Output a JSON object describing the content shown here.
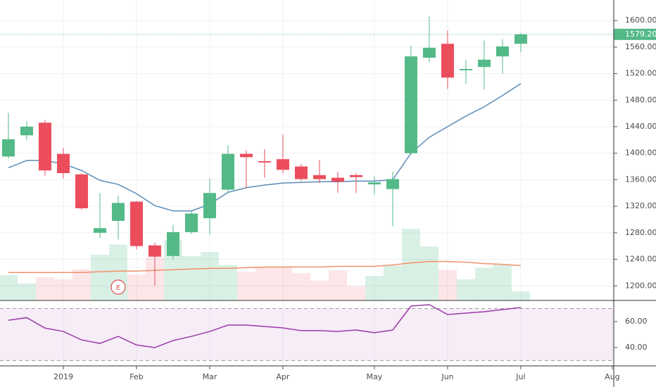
{
  "chart_data": {
    "type": "candlestick",
    "ylim": [
      1178,
      1631
    ],
    "yticks": [
      {
        "value": 1200,
        "label": "1200.00"
      },
      {
        "value": 1240,
        "label": "1240.00"
      },
      {
        "value": 1280,
        "label": "1280.00"
      },
      {
        "value": 1320,
        "label": "1320.00"
      },
      {
        "value": 1360,
        "label": "1360.00"
      },
      {
        "value": 1400,
        "label": "1400.00"
      },
      {
        "value": 1440,
        "label": "1440.00"
      },
      {
        "value": 1480,
        "label": "1480.00"
      },
      {
        "value": 1520,
        "label": "1520.00"
      },
      {
        "value": 1560,
        "label": "1560.00"
      },
      {
        "value": 1600,
        "label": "1600.00"
      }
    ],
    "xlim": [
      -0.46,
      33.08
    ],
    "xticks": [
      {
        "value": 3,
        "label": "2019"
      },
      {
        "value": 7,
        "label": "Feb"
      },
      {
        "value": 11,
        "label": "Mar"
      },
      {
        "value": 15,
        "label": "Apr"
      },
      {
        "value": 20,
        "label": "May"
      },
      {
        "value": 24,
        "label": "Jun"
      },
      {
        "value": 28,
        "label": "Jul"
      },
      {
        "value": 33,
        "label": "Aug"
      }
    ],
    "last_price": {
      "value": 1579.2,
      "label": "1579.20",
      "color": "#53b987"
    },
    "up_color": "#53b987",
    "down_color": "#eb4d5c",
    "open": [
      1395,
      1427,
      1446,
      1399,
      1368,
      1280,
      1298,
      1327,
      1261,
      1245,
      1281,
      1302,
      1345,
      1399,
      1388,
      1391,
      1380,
      1367,
      1363,
      1367,
      1353,
      1346,
      1400,
      1544,
      1565,
      1525,
      1530,
      1546,
      1565
    ],
    "high": [
      1461,
      1448,
      1450,
      1408,
      1370,
      1340,
      1336,
      1328,
      1265,
      1292,
      1312,
      1362,
      1412,
      1404,
      1406,
      1428,
      1384,
      1390,
      1372,
      1370,
      1365,
      1372,
      1562,
      1606,
      1585,
      1540,
      1570,
      1572,
      1581
    ],
    "low": [
      1392,
      1420,
      1366,
      1362,
      1315,
      1272,
      1270,
      1255,
      1200,
      1240,
      1278,
      1278,
      1340,
      1347,
      1363,
      1370,
      1358,
      1355,
      1340,
      1340,
      1338,
      1290,
      1398,
      1537,
      1497,
      1505,
      1496,
      1520,
      1552
    ],
    "close": [
      1421,
      1440,
      1374,
      1370,
      1317,
      1287,
      1325,
      1260,
      1244,
      1281,
      1309,
      1340,
      1399,
      1394,
      1386,
      1375,
      1361,
      1361,
      1357,
      1364,
      1356,
      1361,
      1546,
      1559,
      1514,
      1527,
      1541,
      1561,
      1579.2
    ],
    "ma": {
      "color": "#5b8cb8",
      "values": [
        1378,
        1389,
        1389,
        1384,
        1374,
        1359,
        1353,
        1339,
        1321,
        1313,
        1313,
        1323,
        1341,
        1348,
        1352,
        1355,
        1356,
        1357,
        1357,
        1358,
        1358,
        1360,
        1400,
        1424,
        1440,
        1456,
        1470,
        1487,
        1505
      ]
    },
    "volume": {
      "vlim": [
        0,
        440
      ],
      "values": [
        37,
        25,
        34,
        31,
        46,
        67,
        82,
        38,
        63,
        88,
        65,
        71,
        52,
        42,
        49,
        48,
        40,
        29,
        44,
        21,
        36,
        51,
        105,
        79,
        45,
        31,
        48,
        53,
        13
      ],
      "ma": {
        "color": "#f0906a",
        "values": [
          41,
          41,
          41,
          41,
          41,
          42,
          43,
          43,
          44,
          45,
          46,
          47,
          47,
          48,
          49,
          49,
          49,
          49,
          50,
          50,
          50,
          52,
          55,
          57,
          57,
          56,
          54,
          53,
          51
        ]
      }
    },
    "earnings": {
      "index": 6,
      "label": "E",
      "color": "#e04b4b"
    },
    "rsi": {
      "type": "line",
      "color": "#9c3aa8",
      "ylim": [
        25.9,
        75.7
      ],
      "yticks": [
        {
          "value": 40,
          "label": "40.00"
        },
        {
          "value": 60,
          "label": "60.00"
        }
      ],
      "bands": [
        30,
        70
      ],
      "values": [
        61,
        63,
        55,
        52.4,
        45.9,
        43.2,
        48.6,
        42,
        40,
        45.4,
        48.6,
        52.4,
        57.3,
        57.3,
        56.2,
        55.1,
        53,
        53,
        52.4,
        53.5,
        51.4,
        53.5,
        71.9,
        73,
        65.4,
        66.5,
        67.6,
        69.2,
        70.8
      ]
    }
  }
}
